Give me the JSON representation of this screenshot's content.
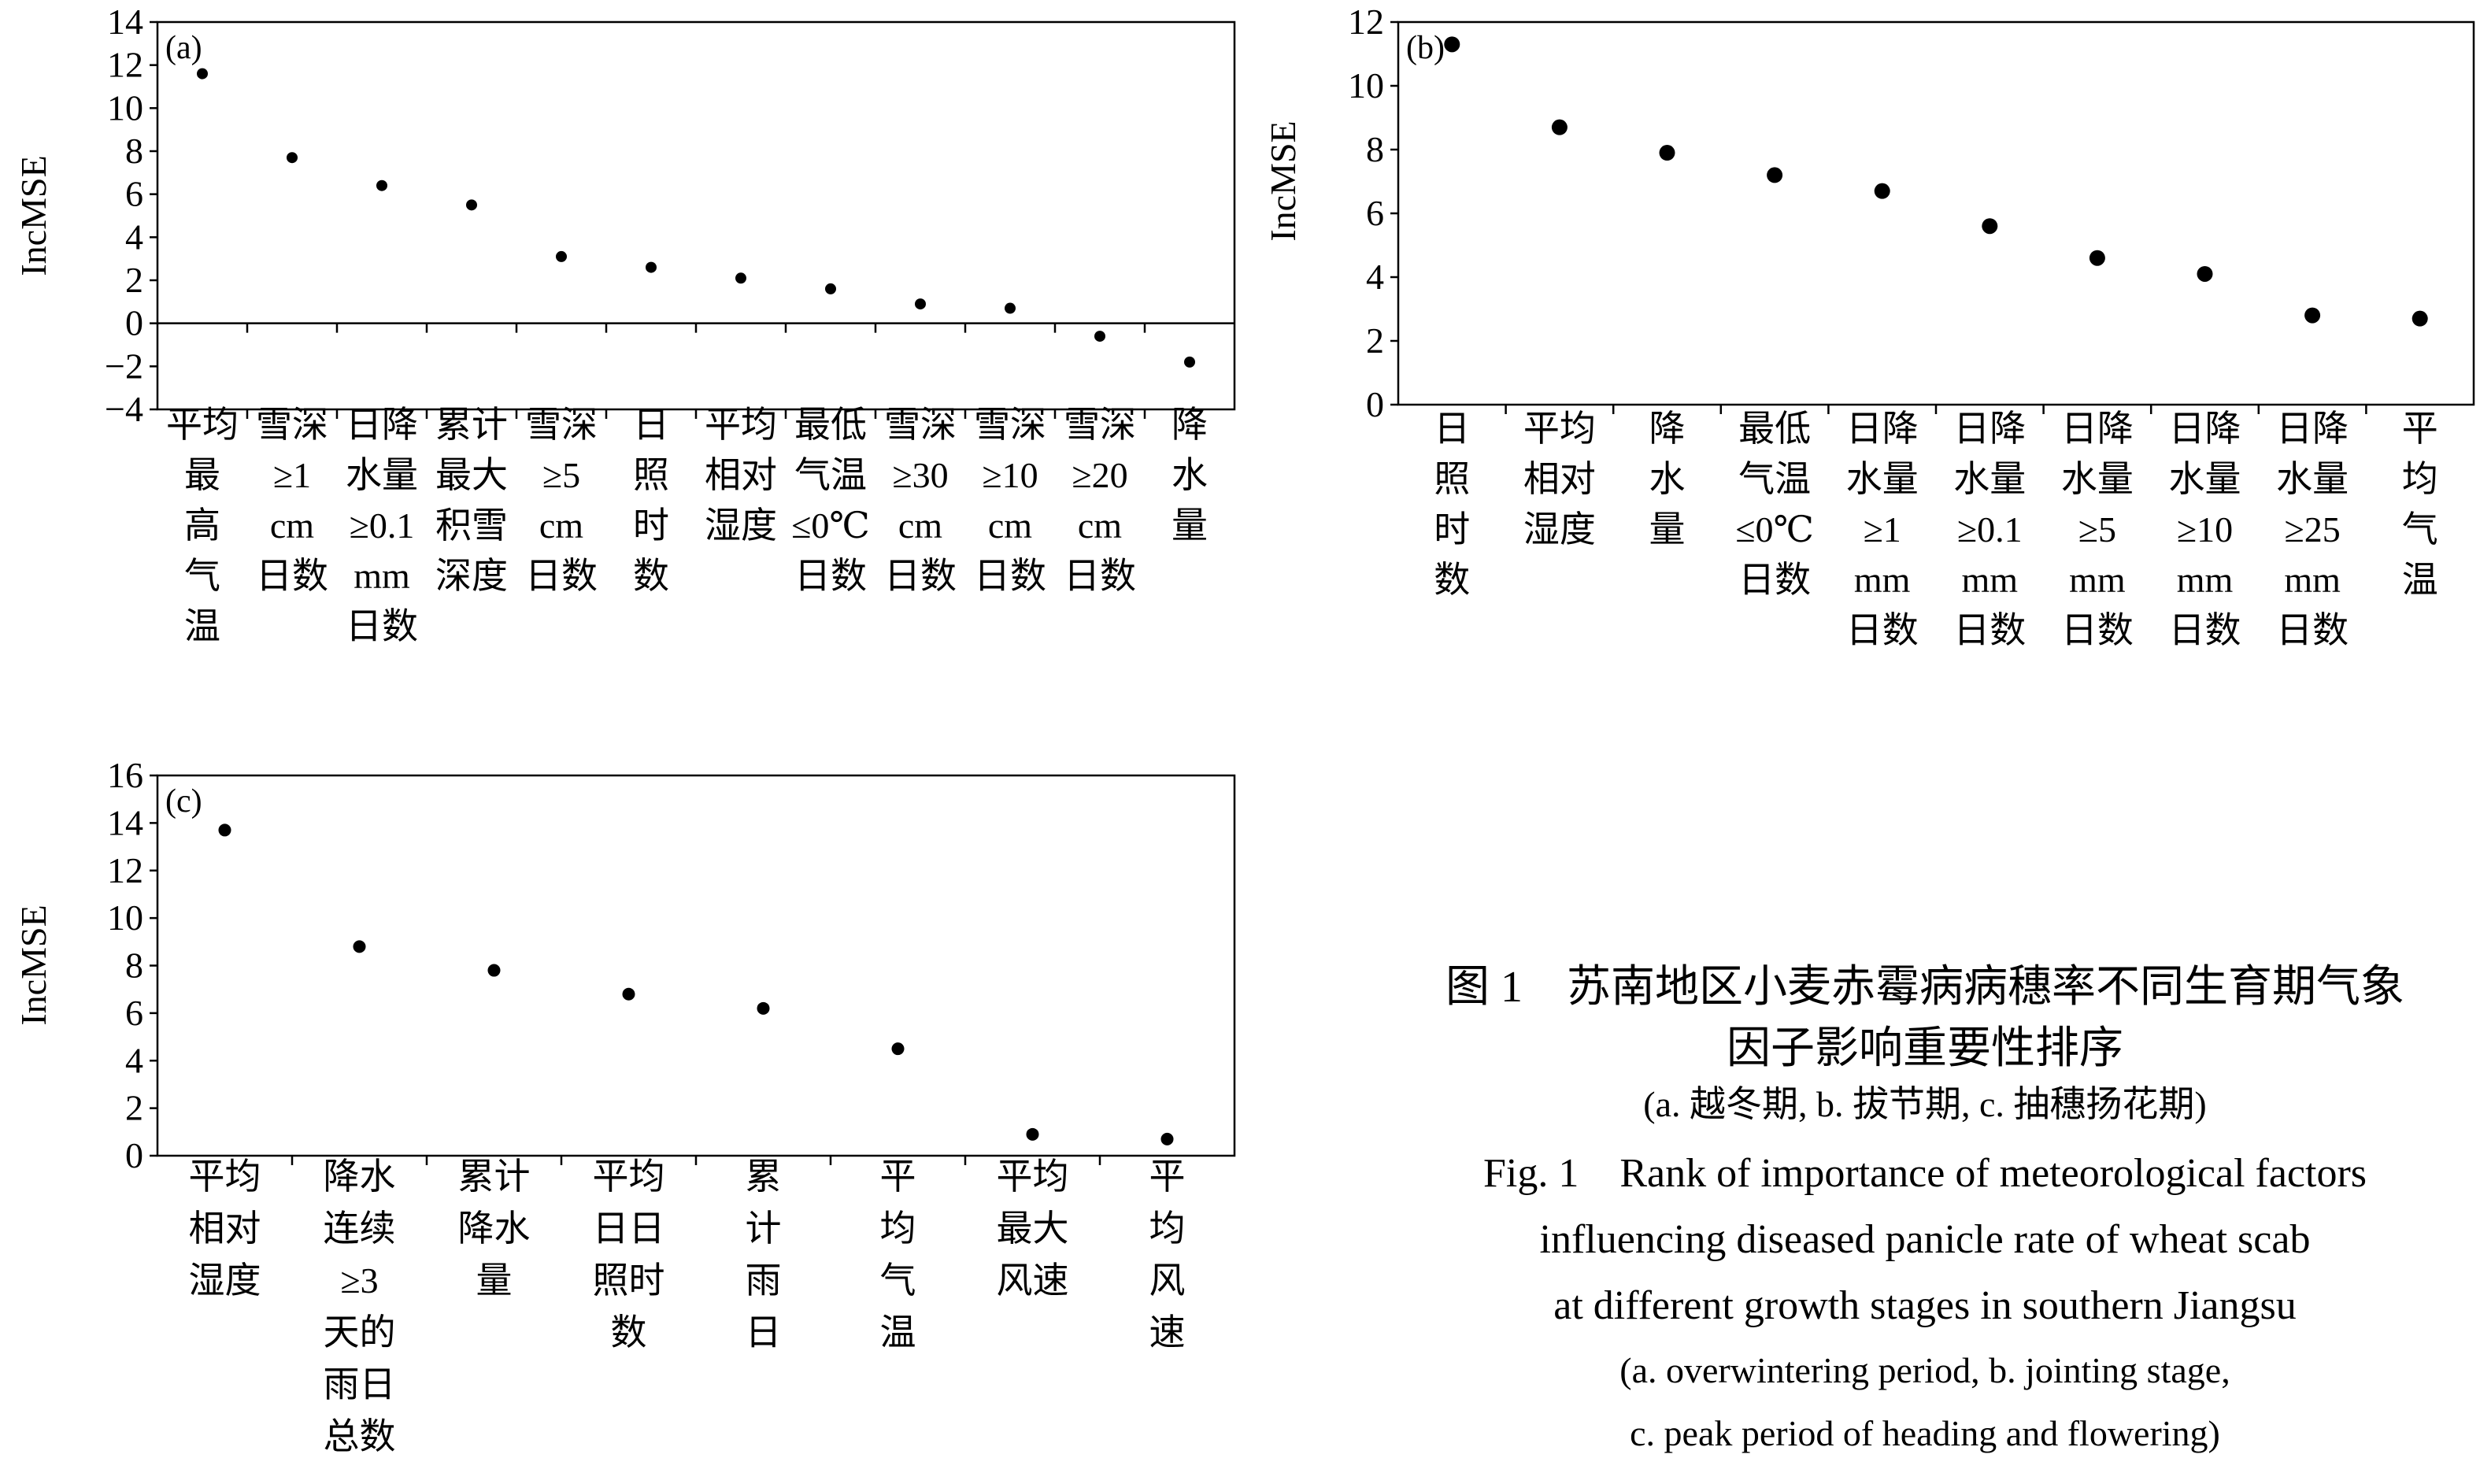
{
  "chart_data": [
    {
      "type": "scatter",
      "panel_label": "(a)",
      "ylabel": "IncMSE",
      "ylim": [
        -4,
        14
      ],
      "yticks": [
        "14",
        "12",
        "10",
        "8",
        "6",
        "4",
        "2",
        "0",
        "−2",
        "−4"
      ],
      "yticks_values": [
        14,
        12,
        10,
        8,
        6,
        4,
        2,
        0,
        -2,
        -4
      ],
      "categories": [
        [
          "平均",
          "最",
          "高",
          "气",
          "温"
        ],
        [
          "雪深",
          "≥1",
          "cm",
          "日数"
        ],
        [
          "日降",
          "水量",
          "≥0.1",
          "mm",
          "日数"
        ],
        [
          "累计",
          "最大",
          "积雪",
          "深度"
        ],
        [
          "雪深",
          "≥5",
          "cm",
          "日数"
        ],
        [
          "日",
          "照",
          "时",
          "数"
        ],
        [
          "平均",
          "相对",
          "湿度"
        ],
        [
          "最低",
          "气温",
          "≤0℃",
          "日数"
        ],
        [
          "雪深",
          "≥30",
          "cm",
          "日数"
        ],
        [
          "雪深",
          "≥10",
          "cm",
          "日数"
        ],
        [
          "雪深",
          "≥20",
          "cm",
          "日数"
        ],
        [
          "降",
          "水",
          "量"
        ]
      ],
      "values": [
        11.6,
        7.7,
        6.4,
        5.5,
        3.1,
        2.6,
        2.1,
        1.6,
        0.9,
        0.7,
        -0.6,
        -1.8
      ]
    },
    {
      "type": "scatter",
      "panel_label": "(b)",
      "ylabel": "IncMSE",
      "ylim": [
        0,
        12
      ],
      "yticks": [
        "12",
        "10",
        "8",
        "6",
        "4",
        "2",
        "0"
      ],
      "yticks_values": [
        12,
        10,
        8,
        6,
        4,
        2,
        0
      ],
      "categories": [
        [
          "日",
          "照",
          "时",
          "数"
        ],
        [
          "平均",
          "相对",
          "湿度"
        ],
        [
          "降",
          "水",
          "量"
        ],
        [
          "最低",
          "气温",
          "≤0℃",
          "日数"
        ],
        [
          "日降",
          "水量",
          "≥1",
          "mm",
          "日数"
        ],
        [
          "日降",
          "水量",
          "≥0.1",
          "mm",
          "日数"
        ],
        [
          "日降",
          "水量",
          "≥5",
          "mm",
          "日数"
        ],
        [
          "日降",
          "水量",
          "≥10",
          "mm",
          "日数"
        ],
        [
          "日降",
          "水量",
          "≥25",
          "mm",
          "日数"
        ],
        [
          "平",
          "均",
          "气",
          "温"
        ]
      ],
      "values": [
        11.3,
        8.7,
        7.9,
        7.2,
        6.7,
        5.6,
        4.6,
        4.1,
        2.8,
        2.7
      ]
    },
    {
      "type": "scatter",
      "panel_label": "(c)",
      "ylabel": "IncMSE",
      "ylim": [
        0,
        16
      ],
      "yticks": [
        "16",
        "14",
        "12",
        "10",
        "8",
        "6",
        "4",
        "2",
        "0"
      ],
      "yticks_values": [
        16,
        14,
        12,
        10,
        8,
        6,
        4,
        2,
        0
      ],
      "categories": [
        [
          "平均",
          "相对",
          "湿度"
        ],
        [
          "降水",
          "连续",
          "≥3",
          "天的",
          "雨日",
          "总数"
        ],
        [
          "累计",
          "降水",
          "量"
        ],
        [
          "平均",
          "日日",
          "照时",
          "数"
        ],
        [
          "累",
          "计",
          "雨",
          "日"
        ],
        [
          "平",
          "均",
          "气",
          "温"
        ],
        [
          "平均",
          "最大",
          "风速"
        ],
        [
          "平",
          "均",
          "风",
          "速"
        ]
      ],
      "values": [
        13.7,
        8.8,
        7.8,
        6.8,
        6.2,
        4.5,
        0.9,
        0.7
      ]
    }
  ],
  "caption": {
    "cn_lines": [
      "图 1　苏南地区小麦赤霉病病穗率不同生育期气象",
      "因子影响重要性排序"
    ],
    "cn_sub": "(a. 越冬期, b. 拔节期, c. 抽穗扬花期)",
    "en_lines": [
      "Fig. 1　Rank of importance of meteorological factors",
      "influencing diseased panicle rate of wheat scab",
      "at different growth stages in southern Jiangsu"
    ],
    "en_sub_lines": [
      "(a. overwintering period, b. jointing stage,",
      "c. peak period of heading and flowering)"
    ]
  },
  "colors": {
    "axis": "#000000",
    "point": "#000000",
    "background": "#ffffff"
  }
}
